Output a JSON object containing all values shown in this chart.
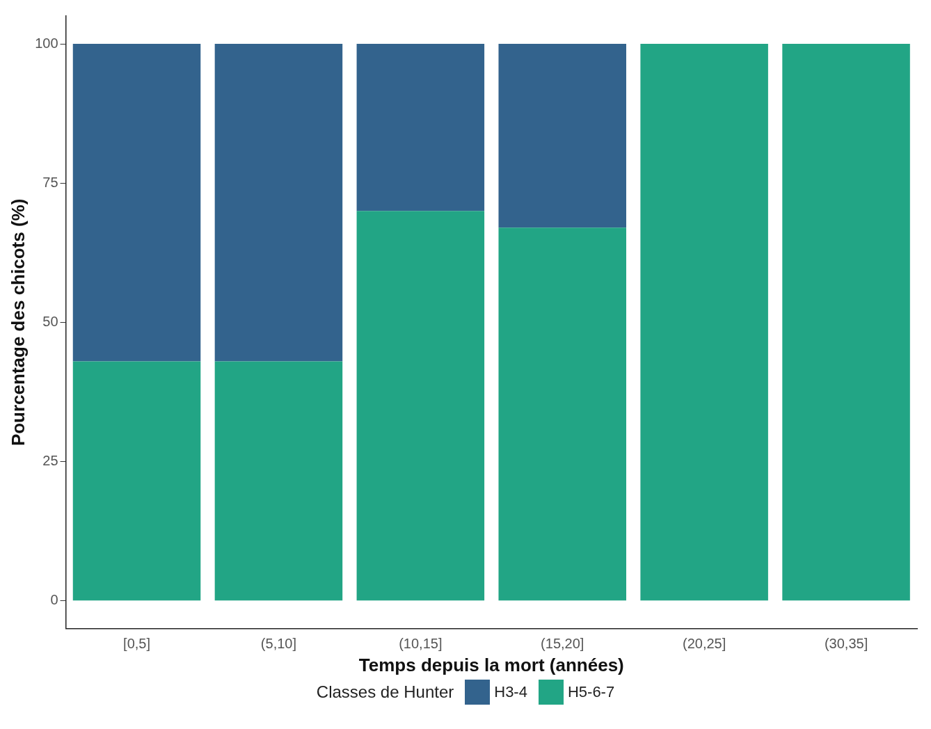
{
  "chart_data": {
    "type": "bar",
    "stacked": true,
    "xlabel": "Temps depuis la mort (années)",
    "ylabel": "Pourcentage des chicots (%)",
    "legend_title": "Classes de Hunter",
    "legend": "bottom",
    "grid": false,
    "categories": [
      "[0,5]",
      "(5,10]",
      "(10,15]",
      "(15,20]",
      "(20,25]",
      "(30,35]"
    ],
    "ylim": [
      -5,
      105
    ],
    "yticks": [
      0,
      25,
      50,
      75,
      100
    ],
    "series": [
      {
        "name": "H5-6-7",
        "color": "#22a585",
        "values": [
          43,
          43,
          70,
          67,
          100,
          100
        ]
      },
      {
        "name": "H3-4",
        "color": "#33638d",
        "values": [
          57,
          57,
          30,
          33,
          0,
          0
        ]
      }
    ]
  }
}
